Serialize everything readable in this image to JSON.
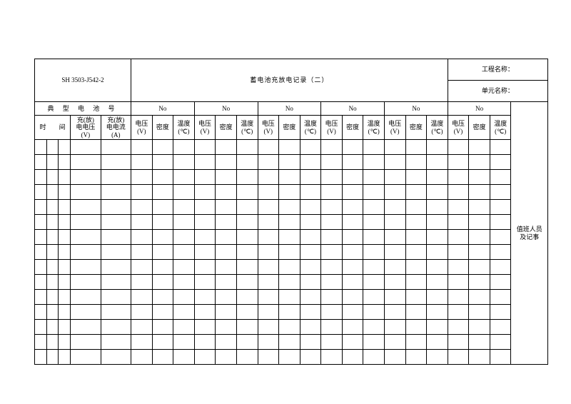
{
  "form_code": "SH 3503-J542-2",
  "title": "蓄电池充放电记录（二）",
  "meta": {
    "project_label": "工程名称：",
    "unit_label": "单元名称："
  },
  "headers": {
    "battery_no_group": "典 型 电 池 号",
    "time": "时　　间",
    "charge_voltage": "充(放)\n电电压\n(V)",
    "charge_current": "充(放)\n电电流\n(A)",
    "no_prefix": "No",
    "voltage": "电压\n(V)",
    "density": "密度",
    "temperature": "温度\n(℃)",
    "duty_notes": "值班人员\n及记事"
  },
  "layout": {
    "battery_groups": 6,
    "blank_rows": 15,
    "colgroup": [
      "13px",
      "13px",
      "13px",
      "33px",
      "33px",
      "23px",
      "23px",
      "23px",
      "23px",
      "23px",
      "23px",
      "23px",
      "23px",
      "23px",
      "23px",
      "23px",
      "23px",
      "23px",
      "23px",
      "23px",
      "23px",
      "23px",
      "23px",
      "40px"
    ]
  },
  "style": {
    "background_color": "#ffffff",
    "border_color": "#000000",
    "title_fontsize": 14,
    "header_fontsize": 9,
    "code_fontsize": 11
  }
}
